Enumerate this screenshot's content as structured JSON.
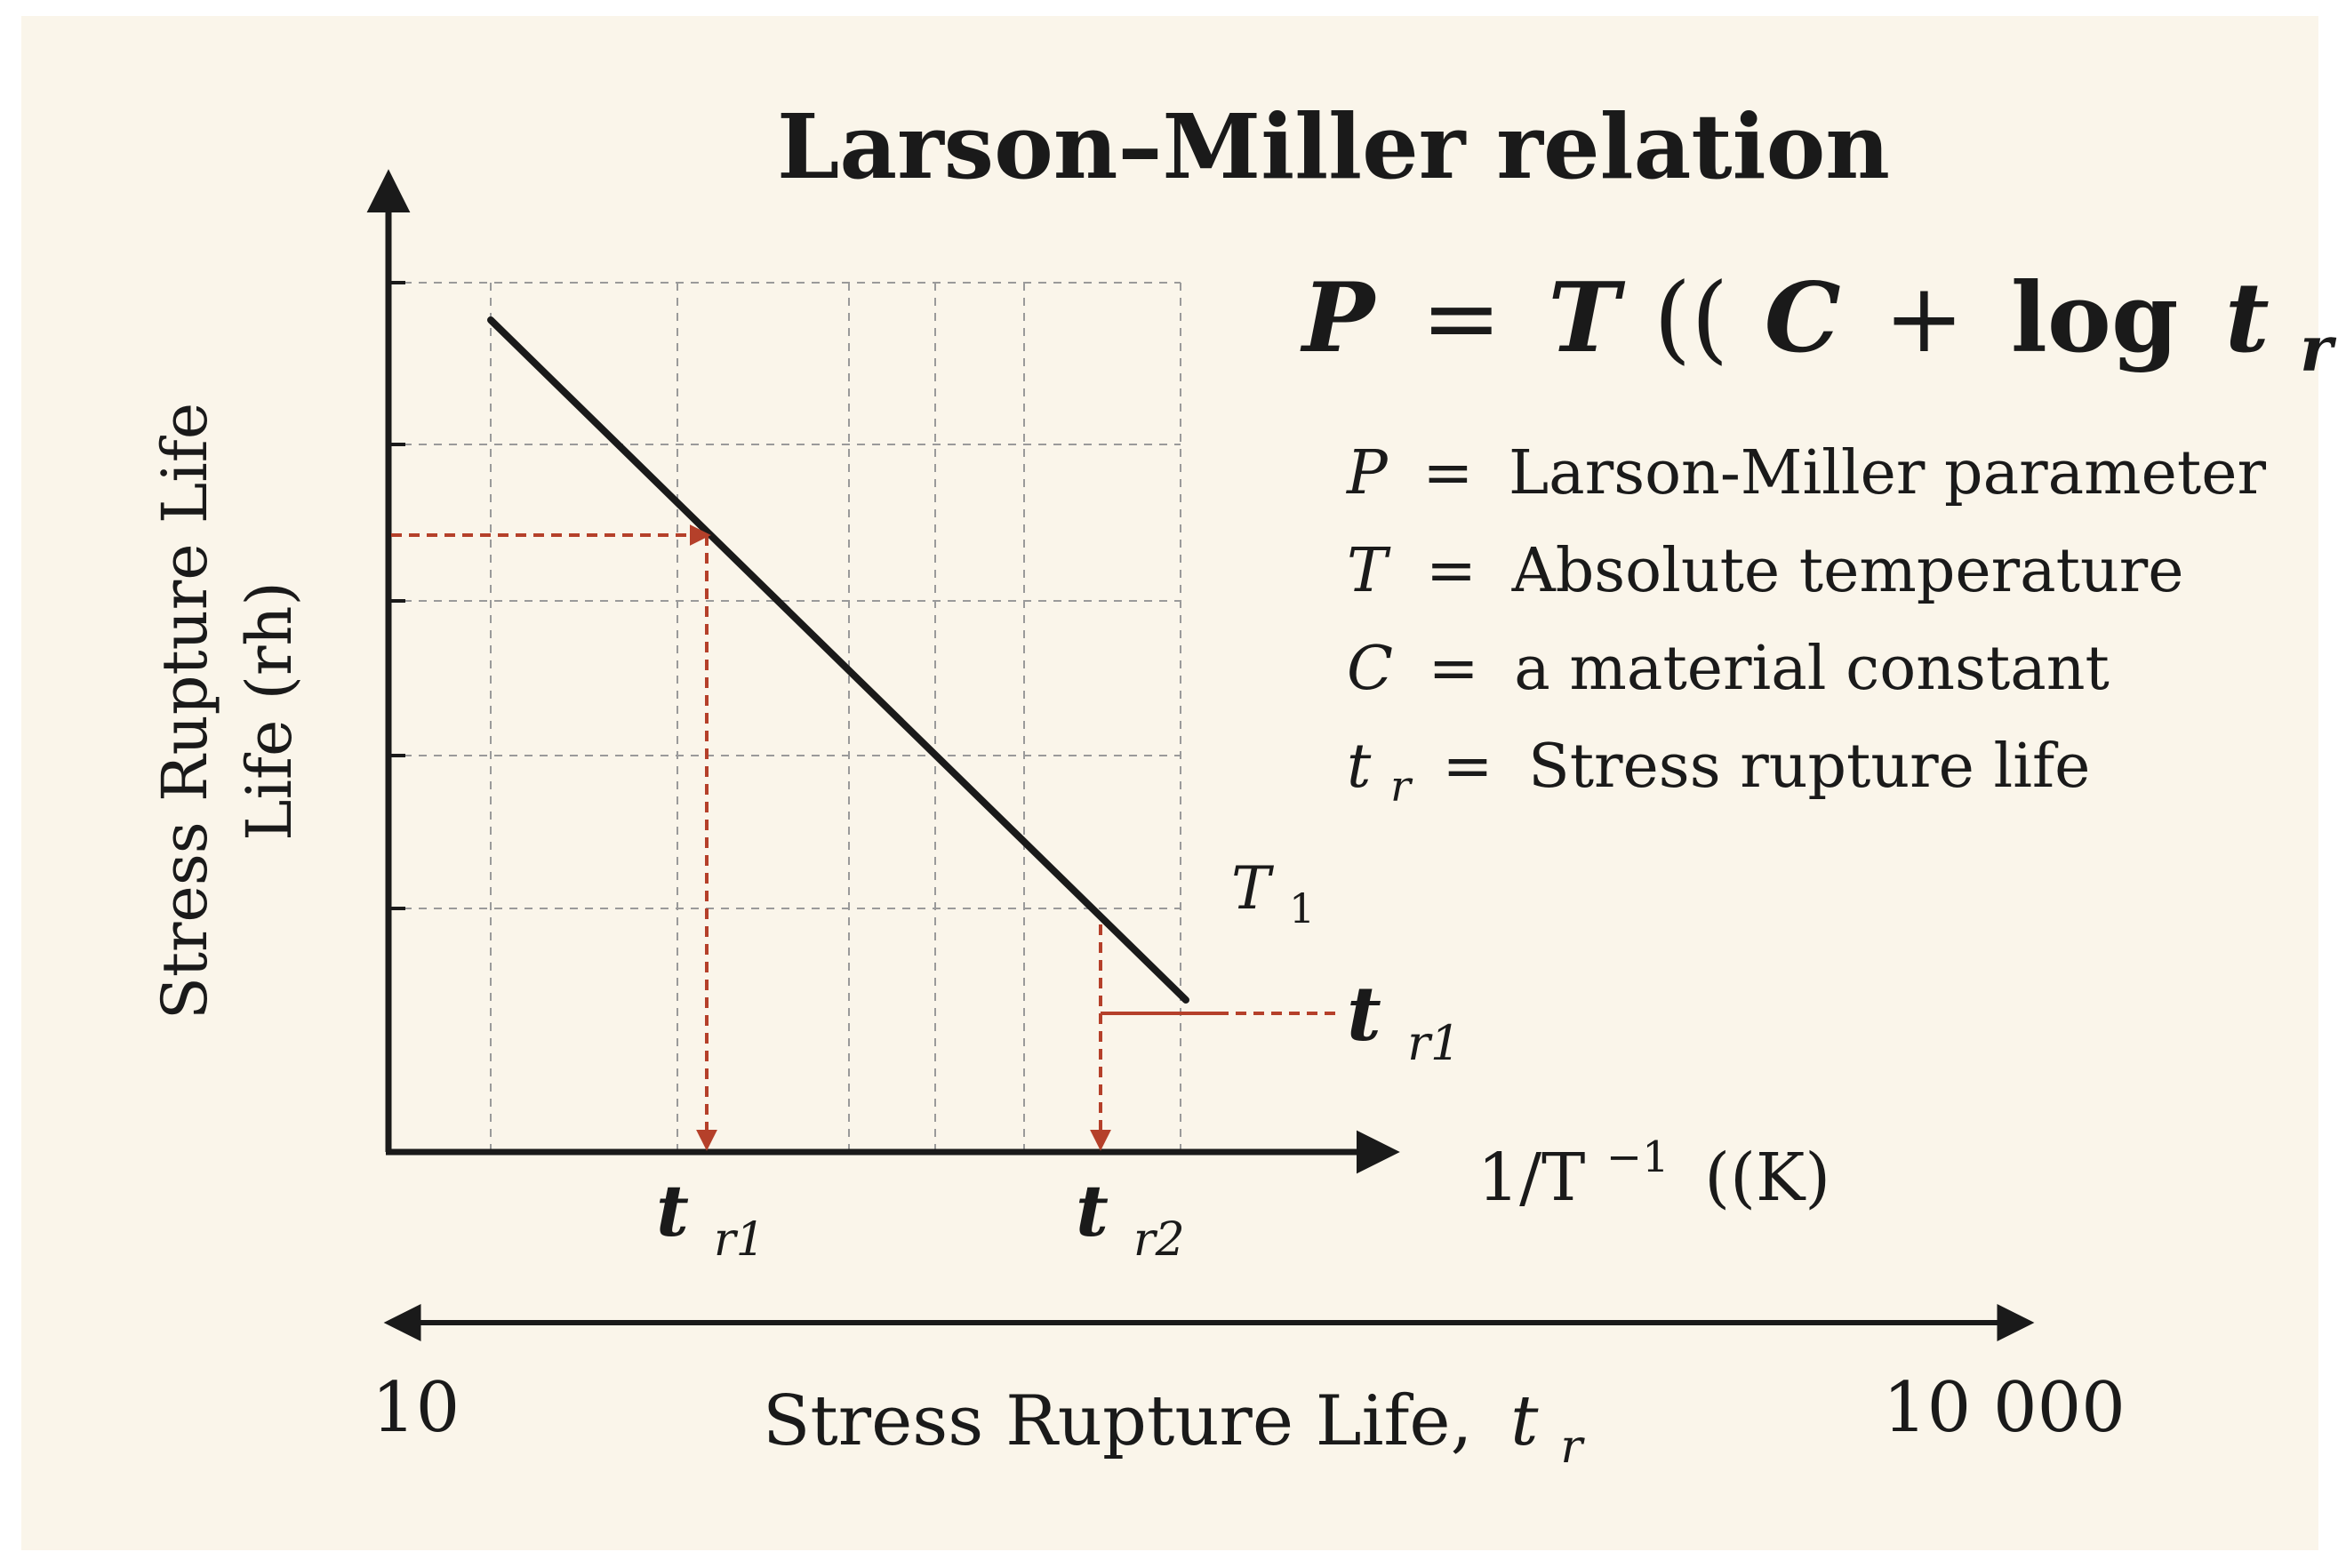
{
  "title": "Larson–Miller relation",
  "formula": {
    "lhs": "P",
    "eq": "=",
    "t": "T",
    "open": "((",
    "c": "C",
    "plus": "+",
    "log": "log",
    "tr_base": "t",
    "tr_sub": "r",
    "close": ")"
  },
  "legend": [
    {
      "sym": "P",
      "sub": "",
      "eq": "=",
      "desc": "Larson-Miller parameter"
    },
    {
      "sym": "T",
      "sub": "",
      "eq": "=",
      "desc": "Absolute temperature"
    },
    {
      "sym": "C",
      "sub": "",
      "eq": "=",
      "desc": "a material constant"
    },
    {
      "sym": "t",
      "sub": "r",
      "eq": "=",
      "desc": "Stress rupture life"
    }
  ],
  "y_axis_label_line1": "Stress Rupture Life",
  "y_axis_label_line2": "Life (rh)",
  "x_axis_label": {
    "main": "1/T",
    "sup": "−1",
    "tail": "((K)"
  },
  "curve_label": {
    "base": "T",
    "sub": "1"
  },
  "right_marker": {
    "base": "t",
    "sub": "r1"
  },
  "x_markers": [
    {
      "base": "t",
      "sub": "r1"
    },
    {
      "base": "t",
      "sub": "r2"
    }
  ],
  "bottom_scale": {
    "left": "10",
    "right": "10 000",
    "label": "Stress Rupture Life,",
    "label_sym": "t",
    "label_sub": "r"
  },
  "colors": {
    "background": "#faf5ea",
    "ink": "#1a1a1a",
    "accent": "#b5402a",
    "grid": "#9a9a9a"
  }
}
